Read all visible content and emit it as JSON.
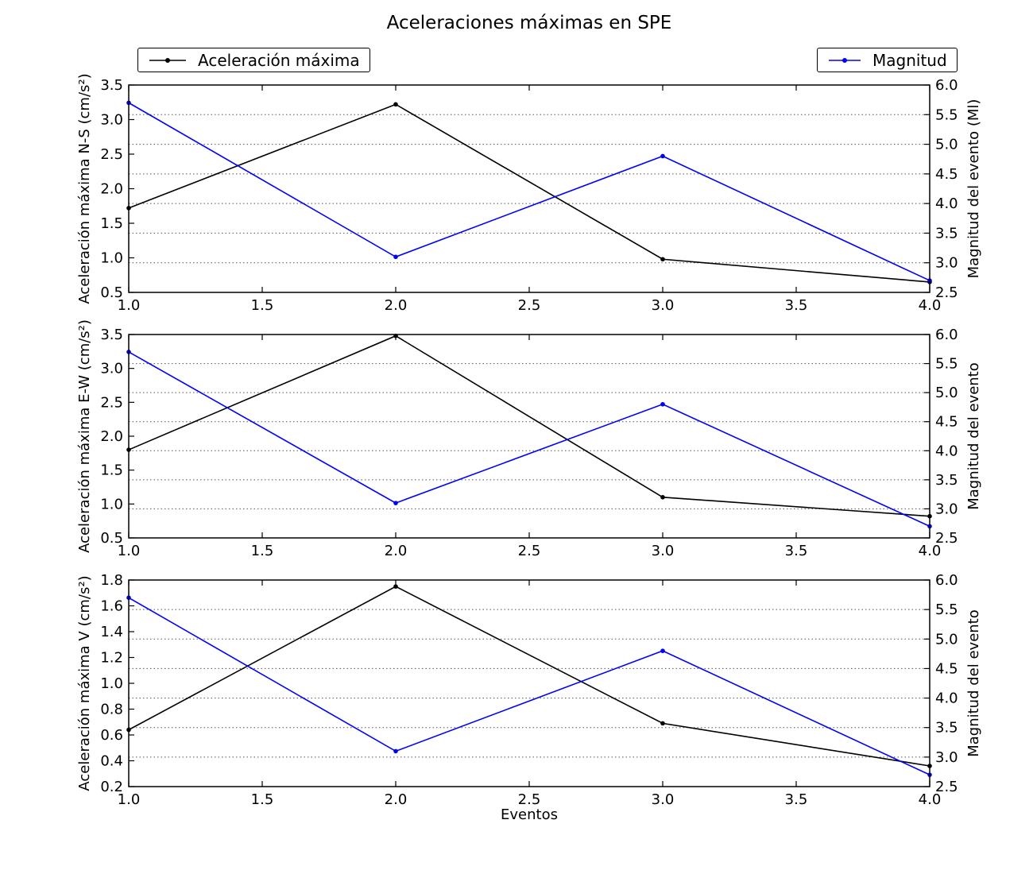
{
  "title": "Aceleraciones máximas en SPE",
  "legend": {
    "acceleration_label": "Aceleración máxima",
    "magnitude_label": "Magnitud"
  },
  "colors": {
    "acceleration": "#000000",
    "magnitude": "#0000ff",
    "frame": "#000000",
    "grid": "#555555",
    "background": "#ffffff"
  },
  "x_axis": {
    "label": "Eventos",
    "min": 1.0,
    "max": 4.0,
    "ticks": [
      "1.0",
      "1.5",
      "2.0",
      "2.5",
      "3.0",
      "3.5",
      "4.0"
    ]
  },
  "chart_data": [
    {
      "type": "line",
      "name": "N-S",
      "x": [
        1,
        2,
        3,
        4
      ],
      "series": [
        {
          "name": "Aceleración máxima",
          "axis": "left",
          "values": [
            1.72,
            3.22,
            0.98,
            0.65
          ]
        },
        {
          "name": "Magnitud",
          "axis": "right",
          "values": [
            5.7,
            3.1,
            4.8,
            2.7
          ]
        }
      ],
      "left_axis": {
        "label": "Aceleración máxima N-S (cm/s²)",
        "min": 0.5,
        "max": 3.5,
        "ticks": [
          "0.5",
          "1.0",
          "1.5",
          "2.0",
          "2.5",
          "3.0",
          "3.5"
        ]
      },
      "right_axis": {
        "label": "Magnitud del evento (Ml)",
        "min": 2.5,
        "max": 6.0,
        "ticks": [
          "2.5",
          "3.0",
          "3.5",
          "4.0",
          "4.5",
          "5.0",
          "5.5",
          "6.0"
        ]
      },
      "grid": {
        "horizontal_dotted_at_right_ticks": true
      }
    },
    {
      "type": "line",
      "name": "E-W",
      "x": [
        1,
        2,
        3,
        4
      ],
      "series": [
        {
          "name": "Aceleración máxima",
          "axis": "left",
          "values": [
            1.8,
            3.48,
            1.1,
            0.82
          ]
        },
        {
          "name": "Magnitud",
          "axis": "right",
          "values": [
            5.7,
            3.1,
            4.8,
            2.7
          ]
        }
      ],
      "left_axis": {
        "label": "Aceleración máxima E-W (cm/s²)",
        "min": 0.5,
        "max": 3.5,
        "ticks": [
          "0.5",
          "1.0",
          "1.5",
          "2.0",
          "2.5",
          "3.0",
          "3.5"
        ]
      },
      "right_axis": {
        "label": "Magnitud del evento",
        "min": 2.5,
        "max": 6.0,
        "ticks": [
          "2.5",
          "3.0",
          "3.5",
          "4.0",
          "4.5",
          "5.0",
          "5.5",
          "6.0"
        ]
      },
      "grid": {
        "horizontal_dotted_at_right_ticks": true
      }
    },
    {
      "type": "line",
      "name": "V",
      "x": [
        1,
        2,
        3,
        4
      ],
      "series": [
        {
          "name": "Aceleración máxima",
          "axis": "left",
          "values": [
            0.64,
            1.75,
            0.69,
            0.36
          ]
        },
        {
          "name": "Magnitud",
          "axis": "right",
          "values": [
            5.7,
            3.1,
            4.8,
            2.7
          ]
        }
      ],
      "left_axis": {
        "label": "Aceleración máxima V (cm/s²)",
        "min": 0.2,
        "max": 1.8,
        "ticks": [
          "0.2",
          "0.4",
          "0.6",
          "0.8",
          "1.0",
          "1.2",
          "1.4",
          "1.6",
          "1.8"
        ]
      },
      "right_axis": {
        "label": "Magnitud del evento",
        "min": 2.5,
        "max": 6.0,
        "ticks": [
          "2.5",
          "3.0",
          "3.5",
          "4.0",
          "4.5",
          "5.0",
          "5.5",
          "6.0"
        ]
      },
      "grid": {
        "horizontal_dotted_at_right_ticks": true
      }
    }
  ]
}
